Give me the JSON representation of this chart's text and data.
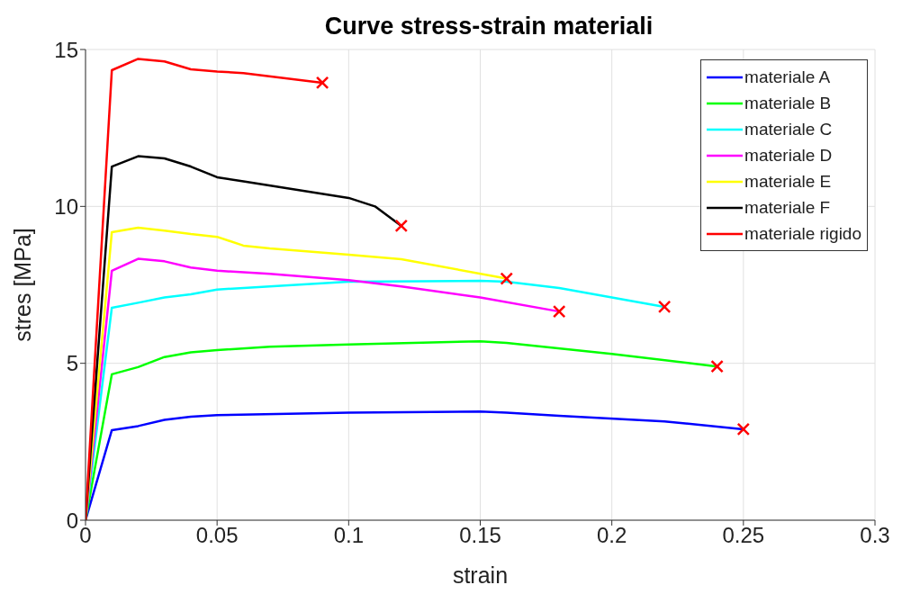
{
  "chart_data": {
    "type": "line",
    "title": "Curve stress-strain materiali",
    "xlabel": "strain",
    "ylabel": "stres [MPa]",
    "xlim": [
      0,
      0.3
    ],
    "xticks": [
      0,
      0.05,
      0.1,
      0.15,
      0.2,
      0.25,
      0.3
    ],
    "ylim": [
      0,
      15
    ],
    "yticks": [
      0,
      5,
      10,
      15
    ],
    "grid": true,
    "legend": "top right",
    "line_style": "solid",
    "series": [
      {
        "name": "materiale A",
        "color": "#0000ff",
        "x": [
          0,
          0.01,
          0.02,
          0.03,
          0.04,
          0.05,
          0.1,
          0.15,
          0.16,
          0.18,
          0.22,
          0.25
        ],
        "values": [
          0,
          2.87,
          3.0,
          3.2,
          3.3,
          3.35,
          3.43,
          3.46,
          3.43,
          3.33,
          3.15,
          2.9
        ]
      },
      {
        "name": "materiale B",
        "color": "#00ff00",
        "x": [
          0,
          0.01,
          0.02,
          0.03,
          0.04,
          0.05,
          0.07,
          0.1,
          0.15,
          0.16,
          0.2,
          0.24
        ],
        "values": [
          0,
          4.65,
          4.88,
          5.2,
          5.35,
          5.42,
          5.53,
          5.6,
          5.7,
          5.65,
          5.3,
          4.9
        ]
      },
      {
        "name": "materiale C",
        "color": "#00ffff",
        "x": [
          0,
          0.01,
          0.02,
          0.03,
          0.04,
          0.05,
          0.07,
          0.1,
          0.15,
          0.16,
          0.18,
          0.22
        ],
        "values": [
          0,
          6.77,
          6.93,
          7.1,
          7.2,
          7.35,
          7.45,
          7.6,
          7.63,
          7.6,
          7.4,
          6.8
        ]
      },
      {
        "name": "materiale D",
        "color": "#ff00ff",
        "x": [
          0,
          0.01,
          0.02,
          0.03,
          0.04,
          0.05,
          0.07,
          0.1,
          0.12,
          0.15,
          0.18
        ],
        "values": [
          0,
          7.95,
          8.33,
          8.25,
          8.05,
          7.95,
          7.85,
          7.65,
          7.45,
          7.1,
          6.65
        ]
      },
      {
        "name": "materiale E",
        "color": "#ffff00",
        "x": [
          0,
          0.01,
          0.02,
          0.03,
          0.04,
          0.05,
          0.06,
          0.07,
          0.1,
          0.12,
          0.16
        ],
        "values": [
          0,
          9.18,
          9.32,
          9.23,
          9.12,
          9.03,
          8.75,
          8.66,
          8.46,
          8.32,
          7.7
        ]
      },
      {
        "name": "materiale F",
        "color": "#000000",
        "x": [
          0,
          0.01,
          0.02,
          0.03,
          0.04,
          0.05,
          0.06,
          0.1,
          0.11,
          0.12
        ],
        "values": [
          0,
          11.27,
          11.6,
          11.53,
          11.27,
          10.93,
          10.8,
          10.27,
          10.0,
          9.38
        ]
      },
      {
        "name": "materiale rigido",
        "color": "#ff0000",
        "x": [
          0,
          0.01,
          0.02,
          0.03,
          0.04,
          0.05,
          0.06,
          0.09
        ],
        "values": [
          0,
          14.34,
          14.7,
          14.62,
          14.37,
          14.3,
          14.25,
          13.94
        ]
      },
      {
        "type": "scatter",
        "marker": "cross",
        "color": "#ff0000",
        "x": [
          0.25,
          0.24,
          0.22,
          0.18,
          0.16,
          0.12,
          0.09
        ],
        "values": [
          2.9,
          4.9,
          6.8,
          6.65,
          7.7,
          9.38,
          13.94
        ]
      }
    ]
  }
}
